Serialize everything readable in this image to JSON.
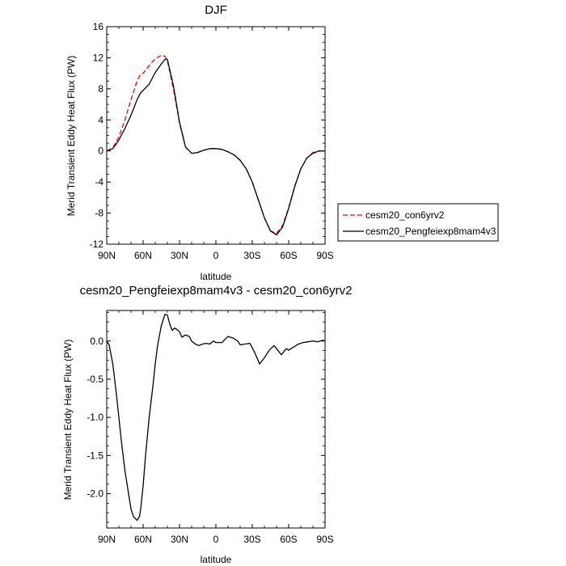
{
  "chart_data": [
    {
      "type": "line",
      "title": "DJF",
      "xlabel": "latitude",
      "ylabel": "Merid Transient Eddy Heat Flux (PW)",
      "xlim": [
        90,
        -90
      ],
      "ylim": [
        -12,
        16
      ],
      "x_ticks": [
        90,
        60,
        30,
        0,
        -30,
        -60,
        -90
      ],
      "x_tick_labels": [
        "90N",
        "60N",
        "30N",
        "0",
        "30S",
        "60S",
        "90S"
      ],
      "y_ticks": [
        -12,
        -8,
        -4,
        0,
        4,
        8,
        12,
        16
      ],
      "y_tick_labels": [
        "-12",
        "-8",
        "-4",
        "0",
        "4",
        "8",
        "12",
        "16"
      ],
      "legend_position": "outside-right",
      "series": [
        {
          "name": "cesm20_con6yrv2",
          "color": "#ff0000",
          "dash": "dashed",
          "x": [
            90,
            85,
            80,
            75,
            70,
            65,
            62,
            60,
            55,
            50,
            45,
            42,
            40,
            35,
            30,
            25,
            20,
            15,
            10,
            5,
            0,
            -5,
            -10,
            -15,
            -20,
            -25,
            -30,
            -35,
            -40,
            -45,
            -50,
            -55,
            -60,
            -65,
            -70,
            -75,
            -80,
            -85,
            -90
          ],
          "y": [
            0,
            0.4,
            1.8,
            4.0,
            6.6,
            9.0,
            9.9,
            10.0,
            11.0,
            11.9,
            12.3,
            12.2,
            11.6,
            8.0,
            3.6,
            0.5,
            -0.3,
            -0.2,
            0.1,
            0.3,
            0.3,
            0.2,
            -0.1,
            -0.5,
            -1.2,
            -2.3,
            -4.0,
            -6.3,
            -8.6,
            -10.3,
            -10.6,
            -9.6,
            -7.3,
            -4.5,
            -2.3,
            -0.9,
            -0.2,
            0,
            0
          ]
        },
        {
          "name": "cesm20_Pengfeiexp8mam4v3",
          "color": "#000000",
          "dash": "solid",
          "x": [
            90,
            85,
            80,
            75,
            70,
            65,
            62,
            60,
            55,
            50,
            45,
            42,
            40,
            35,
            30,
            25,
            20,
            15,
            10,
            5,
            0,
            -5,
            -10,
            -15,
            -20,
            -25,
            -30,
            -35,
            -40,
            -45,
            -50,
            -55,
            -60,
            -65,
            -70,
            -75,
            -80,
            -85,
            -90
          ],
          "y": [
            0,
            0.3,
            1.4,
            2.9,
            4.6,
            6.6,
            7.5,
            7.8,
            8.6,
            10.1,
            11.2,
            11.8,
            11.8,
            8.4,
            3.7,
            0.5,
            -0.3,
            -0.2,
            0.1,
            0.3,
            0.3,
            0.2,
            -0.1,
            -0.5,
            -1.2,
            -2.3,
            -4.0,
            -6.3,
            -8.6,
            -10.3,
            -10.8,
            -9.8,
            -7.4,
            -4.6,
            -2.3,
            -0.9,
            -0.3,
            0,
            0
          ]
        }
      ]
    },
    {
      "type": "line",
      "title": "cesm20_Pengfeiexp8mam4v3 - cesm20_con6yrv2",
      "xlabel": "latitude",
      "ylabel": "Merid Transient Eddy Heat Flux (PW)",
      "xlim": [
        90,
        -90
      ],
      "ylim": [
        -2.45,
        0.4
      ],
      "x_ticks": [
        90,
        60,
        30,
        0,
        -30,
        -60,
        -90
      ],
      "x_tick_labels": [
        "90N",
        "60N",
        "30N",
        "0",
        "30S",
        "60S",
        "90S"
      ],
      "y_ticks": [
        -2.0,
        -1.5,
        -1.0,
        -0.5,
        0.0
      ],
      "y_tick_labels": [
        "-2.0",
        "-1.5",
        "-1.0",
        "-0.5",
        "0.0"
      ],
      "series": [
        {
          "color": "#000000",
          "dash": "solid",
          "x": [
            90,
            88,
            85,
            82,
            80,
            78,
            75,
            72,
            70,
            68,
            65,
            63,
            62,
            60,
            58,
            55,
            52,
            50,
            48,
            45,
            42,
            40,
            38,
            36,
            34,
            32,
            30,
            28,
            25,
            22,
            20,
            17,
            14,
            11,
            8,
            5,
            2,
            0,
            -5,
            -10,
            -14,
            -18,
            -20,
            -24,
            -28,
            -32,
            -36,
            -40,
            -44,
            -48,
            -50,
            -54,
            -58,
            -60,
            -64,
            -68,
            -72,
            -76,
            -80,
            -84,
            -88,
            -90
          ],
          "y": [
            0,
            -0.05,
            -0.3,
            -0.7,
            -1.0,
            -1.3,
            -1.7,
            -2.0,
            -2.2,
            -2.3,
            -2.35,
            -2.3,
            -2.2,
            -1.9,
            -1.5,
            -1.0,
            -0.6,
            -0.3,
            -0.05,
            0.2,
            0.35,
            0.34,
            0.22,
            0.14,
            0.17,
            0.15,
            0.12,
            0.05,
            0.08,
            0.06,
            0.0,
            -0.04,
            -0.06,
            -0.04,
            -0.03,
            -0.04,
            0.0,
            -0.02,
            -0.02,
            0.06,
            0.04,
            0.0,
            -0.05,
            -0.04,
            -0.03,
            -0.15,
            -0.3,
            -0.22,
            -0.12,
            -0.06,
            -0.1,
            -0.18,
            -0.1,
            -0.12,
            -0.08,
            -0.04,
            -0.02,
            -0.01,
            0.0,
            -0.01,
            0.01,
            0.0
          ]
        }
      ]
    }
  ]
}
